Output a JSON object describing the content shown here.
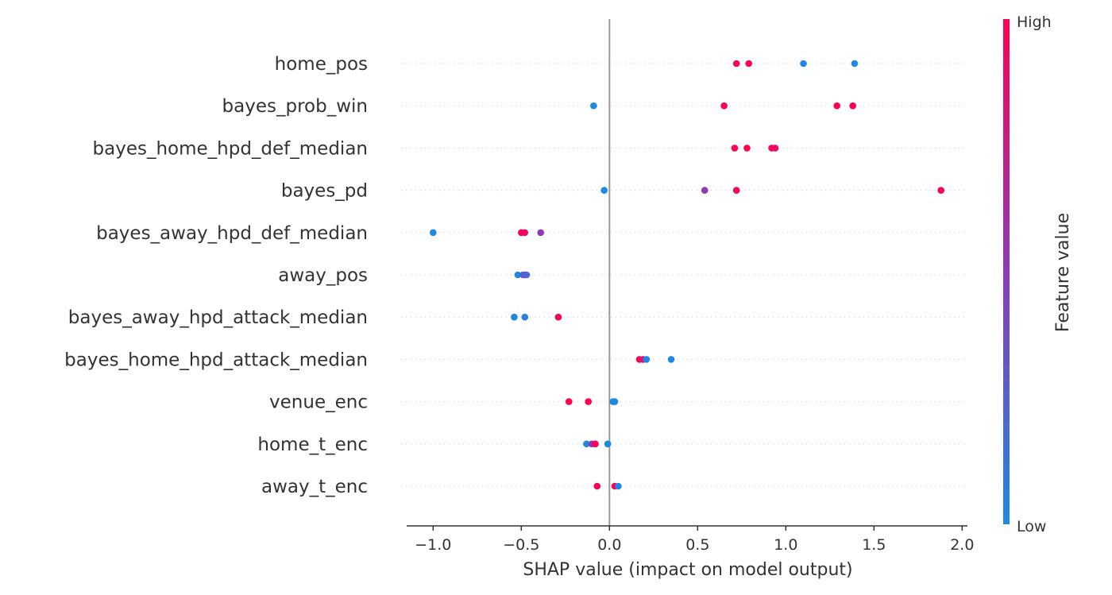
{
  "chart_data": {
    "type": "scatter",
    "subtype": "shap-summary-beeswarm",
    "title": "",
    "xlabel": "SHAP value (impact on model output)",
    "ylabel": "",
    "xlim": [
      -1.15,
      2.03
    ],
    "xticks": [
      -1.0,
      -0.5,
      0.0,
      0.5,
      1.0,
      1.5,
      2.0
    ],
    "xtick_labels": [
      "−1.0",
      "−0.5",
      "0.0",
      "0.5",
      "1.0",
      "1.5",
      "2.0"
    ],
    "zero_line": 0.0,
    "grid": false,
    "colorbar": {
      "title": "Feature value",
      "high_label": "High",
      "low_label": "Low",
      "high_color": "#ff0052",
      "low_color": "#1e88e5",
      "placement": "right"
    },
    "features": [
      {
        "name": "home_pos",
        "points": [
          {
            "x": 0.72,
            "v": 1.0
          },
          {
            "x": 0.79,
            "v": 1.0
          },
          {
            "x": 1.1,
            "v": 0.0
          },
          {
            "x": 1.39,
            "v": 0.0
          }
        ]
      },
      {
        "name": "bayes_prob_win",
        "points": [
          {
            "x": -0.09,
            "v": 0.0
          },
          {
            "x": 0.65,
            "v": 1.0
          },
          {
            "x": 1.29,
            "v": 1.0
          },
          {
            "x": 1.38,
            "v": 1.0
          }
        ]
      },
      {
        "name": "bayes_home_hpd_def_median",
        "points": [
          {
            "x": 0.71,
            "v": 1.0
          },
          {
            "x": 0.78,
            "v": 1.0
          },
          {
            "x": 0.92,
            "v": 1.0
          },
          {
            "x": 0.94,
            "v": 0.9
          }
        ]
      },
      {
        "name": "bayes_pd",
        "points": [
          {
            "x": -0.03,
            "v": 0.0
          },
          {
            "x": 0.54,
            "v": 0.5
          },
          {
            "x": 0.72,
            "v": 1.0
          },
          {
            "x": 1.88,
            "v": 1.0
          }
        ]
      },
      {
        "name": "bayes_away_hpd_def_median",
        "points": [
          {
            "x": -1.0,
            "v": 0.0
          },
          {
            "x": -0.5,
            "v": 1.0
          },
          {
            "x": -0.48,
            "v": 0.9
          },
          {
            "x": -0.39,
            "v": 0.5
          }
        ]
      },
      {
        "name": "away_pos",
        "points": [
          {
            "x": -0.48,
            "v": 1.0
          },
          {
            "x": -0.52,
            "v": 0.0
          },
          {
            "x": -0.49,
            "v": 0.3
          },
          {
            "x": -0.47,
            "v": 0.2
          }
        ]
      },
      {
        "name": "bayes_away_hpd_attack_median",
        "points": [
          {
            "x": -0.54,
            "v": 0.0
          },
          {
            "x": -0.48,
            "v": 0.05
          },
          {
            "x": -0.29,
            "v": 1.0
          }
        ]
      },
      {
        "name": "bayes_home_hpd_attack_median",
        "points": [
          {
            "x": 0.17,
            "v": 1.0
          },
          {
            "x": 0.19,
            "v": 0.8
          },
          {
            "x": 0.21,
            "v": 0.0
          },
          {
            "x": 0.35,
            "v": 0.0
          }
        ]
      },
      {
        "name": "venue_enc",
        "points": [
          {
            "x": -0.23,
            "v": 1.0
          },
          {
            "x": -0.12,
            "v": 1.0
          },
          {
            "x": 0.02,
            "v": 0.0
          },
          {
            "x": 0.03,
            "v": 0.0
          }
        ]
      },
      {
        "name": "home_t_enc",
        "points": [
          {
            "x": -0.13,
            "v": 0.0
          },
          {
            "x": -0.1,
            "v": 0.5
          },
          {
            "x": -0.08,
            "v": 1.0
          },
          {
            "x": -0.01,
            "v": 0.0
          }
        ]
      },
      {
        "name": "away_t_enc",
        "points": [
          {
            "x": -0.07,
            "v": 1.0
          },
          {
            "x": 0.03,
            "v": 1.0
          },
          {
            "x": 0.05,
            "v": 0.0
          }
        ]
      }
    ]
  }
}
